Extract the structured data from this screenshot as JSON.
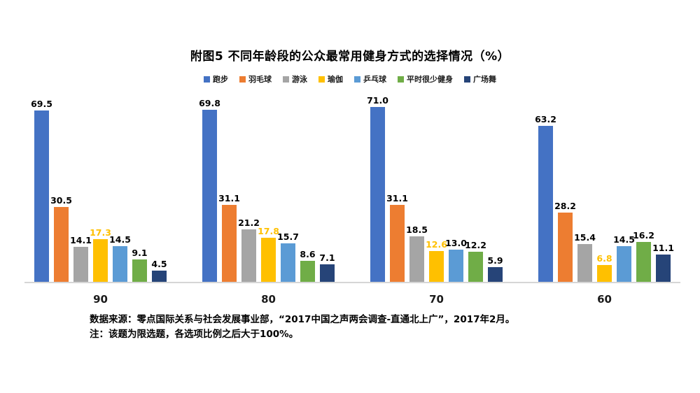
{
  "title": "附图5 不同年龄段的公众最常用健身方式的选择情况（%）",
  "chart_data": {
    "type": "bar",
    "title": "附图5 不同年龄段的公众最常用健身方式的选择情况（%）",
    "categories": [
      "90",
      "80",
      "70",
      "60"
    ],
    "series": [
      {
        "name": "跑步",
        "color": "#4472C4",
        "values": [
          69.5,
          69.8,
          71.0,
          63.2
        ],
        "labels": [
          "69.5",
          "69.8",
          "71.0",
          "63.2"
        ],
        "label_color": "#000000"
      },
      {
        "name": "羽毛球",
        "color": "#ED7D31",
        "values": [
          30.5,
          31.1,
          31.1,
          28.2
        ],
        "labels": [
          "30.5",
          "31.1",
          "31.1",
          "28.2"
        ],
        "label_color": "#000000"
      },
      {
        "name": "游泳",
        "color": "#A5A5A5",
        "values": [
          14.1,
          21.2,
          18.5,
          15.4
        ],
        "labels": [
          "14.1",
          "21.2",
          "18.5",
          "15.4"
        ],
        "label_color": "#000000"
      },
      {
        "name": "瑜伽",
        "color": "#FFC000",
        "values": [
          17.3,
          17.8,
          12.6,
          6.8
        ],
        "labels": [
          "17.3",
          "17.8",
          "12.6",
          "6.8"
        ],
        "label_color": "#FFC000"
      },
      {
        "name": "乒乓球",
        "color": "#5B9BD5",
        "values": [
          14.5,
          15.7,
          13.0,
          14.5
        ],
        "labels": [
          "14.5",
          "15.7",
          "13.0",
          "14.5"
        ],
        "label_color": "#000000"
      },
      {
        "name": "平时很少健身",
        "color": "#70AD47",
        "values": [
          9.1,
          8.6,
          12.2,
          16.2
        ],
        "labels": [
          "9.1",
          "8.6",
          "12.2",
          "16.2"
        ],
        "label_color": "#000000"
      },
      {
        "name": "广场舞",
        "color": "#264478",
        "values": [
          4.5,
          7.1,
          5.9,
          11.1
        ],
        "labels": [
          "4.5",
          "7.1",
          "5.9",
          "11.1"
        ],
        "label_color": "#000000"
      }
    ],
    "ylim": [
      0,
      78
    ],
    "grid": false,
    "legend_position": "top",
    "value_labels": true
  },
  "footer": {
    "source": "数据来源：零点国际关系与社会发展事业部，“2017中国之声两会调查-直通北上广”，2017年2月。",
    "note": "注：该题为限选题，各选项比例之后大于100%。"
  }
}
